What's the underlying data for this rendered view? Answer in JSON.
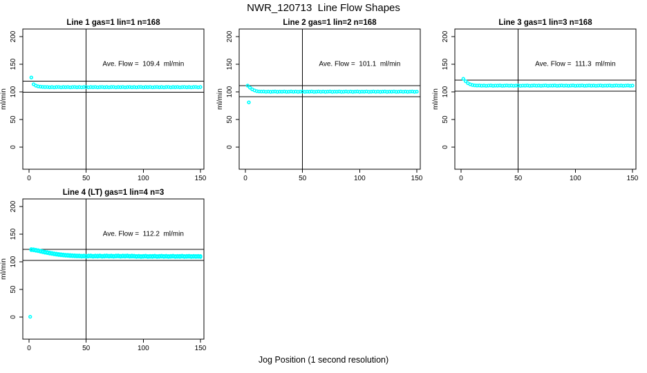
{
  "figure": {
    "title": "NWR_120713  Line Flow Shapes",
    "xlabel": "Jog Position (1 second resolution)",
    "point_color": "#00ffff",
    "line_color": "#000000"
  },
  "chart_data": [
    {
      "type": "scatter",
      "title": "Line 1 gas=1 lin=1 n=168",
      "ave_flow": 109.4,
      "ave_flow_label": "Ave. Flow =  109.4  ml/min",
      "ylabel": "ml/min",
      "x_ticks": [
        0,
        50,
        100,
        150
      ],
      "y_ticks": [
        0,
        50,
        100,
        150,
        200
      ],
      "h_lines": [
        99.4,
        119.4
      ],
      "v_line": 50,
      "runs": 1,
      "run_spread": 0,
      "series": {
        "x_start": 2,
        "x_step": 2,
        "y": [
          126.0,
          113.8,
          111.2,
          109.9,
          109.4,
          109.0,
          108.8,
          108.9,
          108.4,
          108.8,
          108.3,
          108.7,
          108.9,
          108.3,
          108.7,
          108.5,
          108.9,
          108.3,
          108.6,
          108.9,
          108.4,
          108.8,
          108.3,
          108.7,
          108.9,
          108.3,
          108.7,
          108.5,
          108.9,
          108.3,
          108.6,
          108.9,
          108.4,
          108.8,
          108.3,
          108.7,
          108.9,
          108.3,
          108.7,
          108.5,
          108.9,
          108.3,
          108.6,
          108.9,
          108.4,
          108.8,
          108.3,
          108.7,
          108.9,
          108.3,
          108.7,
          108.5,
          108.9,
          108.3,
          108.6,
          108.9,
          108.4,
          108.8,
          108.3,
          108.7,
          108.9,
          108.3,
          108.7,
          108.5,
          108.9,
          108.3,
          108.6,
          108.9,
          108.4,
          108.8,
          108.3,
          108.7,
          108.9,
          108.3,
          108.7
        ]
      },
      "outliers": []
    },
    {
      "type": "scatter",
      "title": "Line 2 gas=1 lin=2 n=168",
      "ave_flow": 101.1,
      "ave_flow_label": "Ave. Flow =  101.1  ml/min",
      "ylabel": "ml/min",
      "x_ticks": [
        0,
        50,
        100,
        150
      ],
      "y_ticks": [
        0,
        50,
        100,
        150,
        200
      ],
      "h_lines": [
        91.1,
        111.1
      ],
      "v_line": 50,
      "runs": 1,
      "run_spread": 0,
      "series": {
        "x_start": 2,
        "x_step": 2,
        "y": [
          111.2,
          107.6,
          104.6,
          102.6,
          101.4,
          100.8,
          100.5,
          100.6,
          100.1,
          100.5,
          100.0,
          100.4,
          100.6,
          100.0,
          100.4,
          100.2,
          100.6,
          100.0,
          100.3,
          100.6,
          100.1,
          100.5,
          100.0,
          100.4,
          100.6,
          100.0,
          100.4,
          100.2,
          100.6,
          100.0,
          100.3,
          100.6,
          100.1,
          100.5,
          100.0,
          100.4,
          100.6,
          100.0,
          100.4,
          100.2,
          100.6,
          100.0,
          100.3,
          100.6,
          100.1,
          100.5,
          100.0,
          100.4,
          100.6,
          100.0,
          100.4,
          100.2,
          100.6,
          100.0,
          100.3,
          100.6,
          100.1,
          100.5,
          100.0,
          100.4,
          100.6,
          100.0,
          100.4,
          100.2,
          100.6,
          100.0,
          100.3,
          100.6,
          100.1,
          100.5,
          100.0,
          100.4,
          100.6,
          100.0,
          100.4
        ]
      },
      "outliers": [
        [
          3,
          81
        ]
      ]
    },
    {
      "type": "scatter",
      "title": "Line 3 gas=1 lin=3 n=168",
      "ave_flow": 111.3,
      "ave_flow_label": "Ave. Flow =  111.3  ml/min",
      "ylabel": "ml/min",
      "x_ticks": [
        0,
        50,
        100,
        150
      ],
      "y_ticks": [
        0,
        50,
        100,
        150,
        200
      ],
      "h_lines": [
        101.3,
        121.3
      ],
      "v_line": 50,
      "runs": 1,
      "run_spread": 0,
      "series": {
        "x_start": 2,
        "x_step": 2,
        "y": [
          123.6,
          119.2,
          115.8,
          113.6,
          112.4,
          111.8,
          111.5,
          111.6,
          111.1,
          111.5,
          111.0,
          111.4,
          111.6,
          111.0,
          111.4,
          111.2,
          111.6,
          111.0,
          111.3,
          111.6,
          111.1,
          111.5,
          111.0,
          111.4,
          111.6,
          111.0,
          111.4,
          111.2,
          111.6,
          111.0,
          111.3,
          111.6,
          111.1,
          111.5,
          111.0,
          111.4,
          111.6,
          111.0,
          111.4,
          111.2,
          111.6,
          111.0,
          111.3,
          111.6,
          111.1,
          111.5,
          111.0,
          111.4,
          111.6,
          111.0,
          111.4,
          111.2,
          111.6,
          111.0,
          111.3,
          111.6,
          111.1,
          111.5,
          111.0,
          111.4,
          111.6,
          111.0,
          111.4,
          111.2,
          111.6,
          111.0,
          111.3,
          111.6,
          111.1,
          111.5,
          111.0,
          111.4,
          111.6,
          111.0,
          111.4
        ]
      },
      "outliers": []
    },
    {
      "type": "scatter",
      "title": "Line 4 (LT) gas=1 lin=4 n=3",
      "ave_flow": 112.2,
      "ave_flow_label": "Ave. Flow =  112.2  ml/min",
      "ylabel": "ml/min",
      "x_ticks": [
        0,
        50,
        100,
        150
      ],
      "y_ticks": [
        0,
        50,
        100,
        150,
        200
      ],
      "h_lines": [
        102.2,
        122.2
      ],
      "v_line": 50,
      "runs": 3,
      "run_spread": 0.9,
      "series": {
        "x_start": 2,
        "x_step": 2,
        "y": [
          122.0,
          121.6,
          120.9,
          120.1,
          119.2,
          118.3,
          117.4,
          116.6,
          115.8,
          115.1,
          114.4,
          113.8,
          113.2,
          112.7,
          112.3,
          111.9,
          111.6,
          111.3,
          111.0,
          110.8,
          110.6,
          110.6,
          110.1,
          110.5,
          110.0,
          110.4,
          110.6,
          110.0,
          110.4,
          110.2,
          110.6,
          110.0,
          110.3,
          110.6,
          110.1,
          110.5,
          110.0,
          110.4,
          110.6,
          110.0,
          110.4,
          110.2,
          110.6,
          110.0,
          110.3,
          110.1,
          109.6,
          110.0,
          109.5,
          109.9,
          110.1,
          109.5,
          109.9,
          109.7,
          110.1,
          109.5,
          109.8,
          110.1,
          109.6,
          110.0,
          109.5,
          109.9,
          110.1,
          109.5,
          109.9,
          109.7,
          110.1,
          109.5,
          109.8,
          110.0,
          109.5,
          109.9,
          109.6,
          109.8,
          109.5
        ]
      },
      "outliers": [
        [
          1,
          0.5
        ]
      ]
    }
  ]
}
